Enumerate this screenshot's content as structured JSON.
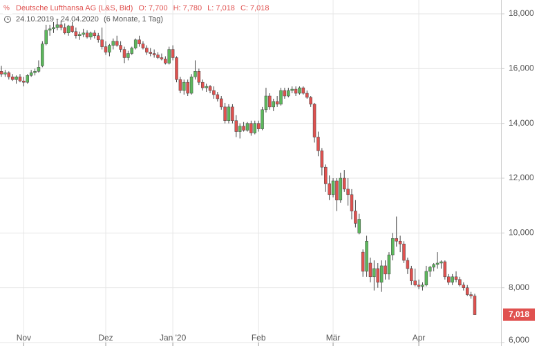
{
  "chart_data": {
    "type": "candlestick",
    "title": "Deutsche Lufthansa AG (L&S, Bid)",
    "quote_labels": [
      "O: 7,700",
      "H: 7,780",
      "L: 7,018",
      "C: 7,018"
    ],
    "range": "24.10.2019 - 24.04.2020",
    "period": "(6 Monate, 1 Tag)",
    "last_label": "7,018",
    "up_color": "#5cb85c",
    "down_color": "#e0514f",
    "grid": true,
    "ylim": [
      6,
      18.25
    ],
    "yticks": [
      {
        "value": 6,
        "label": "6,000"
      },
      {
        "value": 8,
        "label": "8,000"
      },
      {
        "value": 10,
        "label": "10,000"
      },
      {
        "value": 12,
        "label": "12,000"
      },
      {
        "value": 14,
        "label": "14,000"
      },
      {
        "value": 16,
        "label": "16,000"
      },
      {
        "value": 18,
        "label": "18,000"
      }
    ],
    "categories": [
      null,
      null,
      null,
      null,
      null,
      null,
      "Nov",
      null,
      null,
      null,
      null,
      null,
      null,
      null,
      null,
      null,
      null,
      null,
      null,
      null,
      null,
      null,
      null,
      null,
      null,
      null,
      null,
      null,
      "Dez",
      null,
      null,
      null,
      null,
      null,
      null,
      null,
      null,
      null,
      null,
      null,
      null,
      null,
      null,
      null,
      null,
      null,
      "Jan '20",
      null,
      null,
      null,
      null,
      null,
      null,
      null,
      null,
      null,
      null,
      null,
      null,
      null,
      null,
      null,
      null,
      null,
      null,
      null,
      null,
      null,
      null,
      "Feb",
      null,
      null,
      null,
      null,
      null,
      null,
      null,
      null,
      null,
      null,
      null,
      null,
      null,
      null,
      null,
      null,
      null,
      null,
      null,
      "Mär",
      null,
      null,
      null,
      null,
      null,
      null,
      null,
      null,
      null,
      null,
      null,
      null,
      null,
      null,
      null,
      null,
      null,
      null,
      null,
      null,
      null,
      null,
      "Apr",
      null,
      null,
      null,
      null,
      null,
      null,
      null,
      null,
      null,
      null,
      null,
      null,
      null,
      null,
      null
    ],
    "candles": [
      [
        15.9,
        16.1,
        15.7,
        15.8
      ],
      [
        15.8,
        15.95,
        15.7,
        15.85
      ],
      [
        15.85,
        15.9,
        15.6,
        15.7
      ],
      [
        15.7,
        15.8,
        15.55,
        15.6
      ],
      [
        15.6,
        15.75,
        15.45,
        15.7
      ],
      [
        15.7,
        15.8,
        15.5,
        15.55
      ],
      [
        15.55,
        15.7,
        15.35,
        15.5
      ],
      [
        15.5,
        15.8,
        15.45,
        15.75
      ],
      [
        15.75,
        15.95,
        15.7,
        15.85
      ],
      [
        15.85,
        16.0,
        15.75,
        15.9
      ],
      [
        15.9,
        16.3,
        15.85,
        16.05
      ],
      [
        16.1,
        17.0,
        16.05,
        16.9
      ],
      [
        16.9,
        17.6,
        16.85,
        17.4
      ],
      [
        17.4,
        17.6,
        17.2,
        17.45
      ],
      [
        17.45,
        17.7,
        17.3,
        17.5
      ],
      [
        17.5,
        17.8,
        17.4,
        17.6
      ],
      [
        17.6,
        17.75,
        17.4,
        17.5
      ],
      [
        17.5,
        17.65,
        17.25,
        17.3
      ],
      [
        17.3,
        17.6,
        17.2,
        17.55
      ],
      [
        17.55,
        17.7,
        17.3,
        17.35
      ],
      [
        17.35,
        17.5,
        17.1,
        17.2
      ],
      [
        17.2,
        17.35,
        17.05,
        17.25
      ],
      [
        17.25,
        17.45,
        17.15,
        17.3
      ],
      [
        17.3,
        17.4,
        17.1,
        17.15
      ],
      [
        17.15,
        17.35,
        17.05,
        17.3
      ],
      [
        17.3,
        17.4,
        17.1,
        17.2
      ],
      [
        17.2,
        17.3,
        16.95,
        17.05
      ],
      [
        17.05,
        17.5,
        16.7,
        16.8
      ],
      [
        16.8,
        17.0,
        16.5,
        16.6
      ],
      [
        16.6,
        16.9,
        16.45,
        16.85
      ],
      [
        16.85,
        17.1,
        16.7,
        17.0
      ],
      [
        17.0,
        17.2,
        16.8,
        16.85
      ],
      [
        16.85,
        17.0,
        16.6,
        16.7
      ],
      [
        16.7,
        16.8,
        16.2,
        16.4
      ],
      [
        16.4,
        16.65,
        16.3,
        16.55
      ],
      [
        16.55,
        16.8,
        16.5,
        16.75
      ],
      [
        16.75,
        17.1,
        16.7,
        17.05
      ],
      [
        17.05,
        17.2,
        16.8,
        16.9
      ],
      [
        16.9,
        17.0,
        16.7,
        16.75
      ],
      [
        16.75,
        16.85,
        16.5,
        16.6
      ],
      [
        16.6,
        16.75,
        16.45,
        16.55
      ],
      [
        16.55,
        16.7,
        16.4,
        16.5
      ],
      [
        16.5,
        16.6,
        16.35,
        16.4
      ],
      [
        16.4,
        16.55,
        16.3,
        16.35
      ],
      [
        16.35,
        16.45,
        16.15,
        16.2
      ],
      [
        16.2,
        16.8,
        16.15,
        16.7
      ],
      [
        16.7,
        16.85,
        16.3,
        16.4
      ],
      [
        16.4,
        16.45,
        15.5,
        15.6
      ],
      [
        15.6,
        15.7,
        15.1,
        15.2
      ],
      [
        15.2,
        15.6,
        15.05,
        15.5
      ],
      [
        15.5,
        15.6,
        15.0,
        15.1
      ],
      [
        15.1,
        15.8,
        15.05,
        15.7
      ],
      [
        15.7,
        16.3,
        15.6,
        15.9
      ],
      [
        15.9,
        16.0,
        15.4,
        15.5
      ],
      [
        15.5,
        15.6,
        15.2,
        15.3
      ],
      [
        15.3,
        15.45,
        15.15,
        15.35
      ],
      [
        15.35,
        15.4,
        15.1,
        15.2
      ],
      [
        15.2,
        15.35,
        14.9,
        15.05
      ],
      [
        15.05,
        15.15,
        14.8,
        14.9
      ],
      [
        14.9,
        15.0,
        14.5,
        14.6
      ],
      [
        14.6,
        14.75,
        14.0,
        14.1
      ],
      [
        14.1,
        14.7,
        14.0,
        14.6
      ],
      [
        14.6,
        14.7,
        14.0,
        14.1
      ],
      [
        14.1,
        14.3,
        13.5,
        13.7
      ],
      [
        13.7,
        14.0,
        13.45,
        13.9
      ],
      [
        13.9,
        14.05,
        13.7,
        13.75
      ],
      [
        13.75,
        14.05,
        13.7,
        14.0
      ],
      [
        14.0,
        14.1,
        13.55,
        13.65
      ],
      [
        13.65,
        14.1,
        13.6,
        14.0
      ],
      [
        14.0,
        14.1,
        13.7,
        13.8
      ],
      [
        13.8,
        14.6,
        13.75,
        14.5
      ],
      [
        14.5,
        15.3,
        14.4,
        15.0
      ],
      [
        15.0,
        15.1,
        14.5,
        14.6
      ],
      [
        14.6,
        14.9,
        14.45,
        14.8
      ],
      [
        14.8,
        15.0,
        14.6,
        14.7
      ],
      [
        14.7,
        15.3,
        14.65,
        15.2
      ],
      [
        15.2,
        15.3,
        14.9,
        15.0
      ],
      [
        15.0,
        15.3,
        14.95,
        15.2
      ],
      [
        15.2,
        15.35,
        15.1,
        15.25
      ],
      [
        15.25,
        15.35,
        15.0,
        15.1
      ],
      [
        15.1,
        15.35,
        15.05,
        15.3
      ],
      [
        15.3,
        15.35,
        15.05,
        15.1
      ],
      [
        15.1,
        15.2,
        14.9,
        14.95
      ],
      [
        14.95,
        15.0,
        14.6,
        14.7
      ],
      [
        14.7,
        14.75,
        13.3,
        13.5
      ],
      [
        13.5,
        13.7,
        12.8,
        13.0
      ],
      [
        13.0,
        13.1,
        12.1,
        12.4
      ],
      [
        12.4,
        12.5,
        11.5,
        11.8
      ],
      [
        11.8,
        12.1,
        11.2,
        11.4
      ],
      [
        11.4,
        12.0,
        11.3,
        11.9
      ],
      [
        11.9,
        12.0,
        10.8,
        11.2
      ],
      [
        11.2,
        12.2,
        11.1,
        12.0
      ],
      [
        12.0,
        12.3,
        11.5,
        11.6
      ],
      [
        11.6,
        12.0,
        11.0,
        11.4
      ],
      [
        11.4,
        11.6,
        10.5,
        10.8
      ],
      [
        10.8,
        11.2,
        10.2,
        10.35
      ],
      [
        10.0,
        10.7,
        9.95,
        10.5
      ],
      [
        9.3,
        9.4,
        8.4,
        8.6
      ],
      [
        8.6,
        9.9,
        8.4,
        9.7
      ],
      [
        8.9,
        9.1,
        8.2,
        8.4
      ],
      [
        8.4,
        9.0,
        7.9,
        8.7
      ],
      [
        8.7,
        8.9,
        8.0,
        8.2
      ],
      [
        8.2,
        9.0,
        7.85,
        8.8
      ],
      [
        8.8,
        9.0,
        8.3,
        8.5
      ],
      [
        8.5,
        9.3,
        8.3,
        9.2
      ],
      [
        9.2,
        10.0,
        9.0,
        9.8
      ],
      [
        9.8,
        10.6,
        9.5,
        9.7
      ],
      [
        9.7,
        9.9,
        9.3,
        9.6
      ],
      [
        9.6,
        9.7,
        8.9,
        9.0
      ],
      [
        9.0,
        9.1,
        8.5,
        8.7
      ],
      [
        8.7,
        8.8,
        8.1,
        8.25
      ],
      [
        8.25,
        8.7,
        8.05,
        8.1
      ],
      [
        8.1,
        8.3,
        7.95,
        8.05
      ],
      [
        8.05,
        8.2,
        7.9,
        8.1
      ],
      [
        8.1,
        8.8,
        8.05,
        8.6
      ],
      [
        8.6,
        8.8,
        8.4,
        8.75
      ],
      [
        8.75,
        8.9,
        8.6,
        8.85
      ],
      [
        8.85,
        9.3,
        8.7,
        8.9
      ],
      [
        8.9,
        9.0,
        8.7,
        8.95
      ],
      [
        8.95,
        9.0,
        8.3,
        8.4
      ],
      [
        8.4,
        8.5,
        8.1,
        8.2
      ],
      [
        8.2,
        8.5,
        8.1,
        8.4
      ],
      [
        8.4,
        8.6,
        8.2,
        8.3
      ],
      [
        8.3,
        8.4,
        8.05,
        8.1
      ],
      [
        8.1,
        8.2,
        7.9,
        8.0
      ],
      [
        8.0,
        8.1,
        7.7,
        7.75
      ],
      [
        7.75,
        7.85,
        7.6,
        7.7
      ],
      [
        7.7,
        7.78,
        7.018,
        7.018
      ]
    ]
  }
}
